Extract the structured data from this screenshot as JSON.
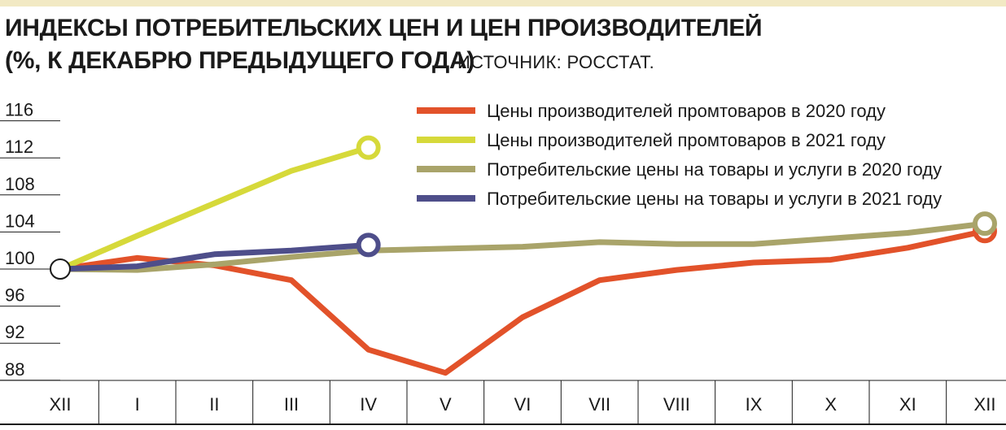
{
  "header": {
    "title_line1": "ИНДЕКСЫ ПОТРЕБИТЕЛЬСКИХ ЦЕН И ЦЕН ПРОИЗВОДИТЕЛЕЙ",
    "title_line2": "(%, К ДЕКАБРЮ ПРЕДЫДУЩЕГО ГОДА)",
    "source": "ИСТОЧНИК: РОССТАТ."
  },
  "chart_data": {
    "type": "line",
    "title": "ИНДЕКСЫ ПОТРЕБИТЕЛЬСКИХ ЦЕН И ЦЕН ПРОИЗВОДИТЕЛЕЙ (%, К ДЕКАБРЮ ПРЕДЫДУЩЕГО ГОДА)",
    "categories": [
      "XII",
      "I",
      "II",
      "III",
      "IV",
      "V",
      "VI",
      "VII",
      "VIII",
      "IX",
      "X",
      "XI",
      "XII"
    ],
    "yticks": [
      116,
      112,
      108,
      104,
      100,
      96,
      92,
      88
    ],
    "ylim": [
      87,
      117
    ],
    "grid": false,
    "legend_position": "top-right",
    "series": [
      {
        "name": "Цены производителей промтоваров в 2020 году",
        "color": "#e2522a",
        "values": [
          100,
          101.2,
          100.4,
          98.8,
          91.3,
          88.8,
          94.8,
          98.8,
          99.9,
          100.7,
          101.0,
          102.3,
          104.1
        ],
        "end_marker": true
      },
      {
        "name": "Цены производителей промтоваров в 2021 году",
        "color": "#d6d93a",
        "values": [
          100,
          103.6,
          107.1,
          110.6,
          113.1,
          null,
          null,
          null,
          null,
          null,
          null,
          null,
          null
        ],
        "end_marker": true
      },
      {
        "name": "Потребительские цены на товары и услуги в 2020 году",
        "color": "#a9a46a",
        "values": [
          100,
          99.9,
          100.5,
          101.3,
          102.0,
          102.2,
          102.4,
          102.9,
          102.7,
          102.7,
          103.3,
          103.9,
          104.9
        ],
        "end_marker": true
      },
      {
        "name": "Потребительские цены на товары и услуги в 2021 году",
        "color": "#4e4e8a",
        "values": [
          100,
          100.3,
          101.6,
          102.0,
          102.6,
          null,
          null,
          null,
          null,
          null,
          null,
          null,
          null
        ],
        "end_marker": true
      }
    ],
    "origin_marker_color": "#ffffff"
  }
}
